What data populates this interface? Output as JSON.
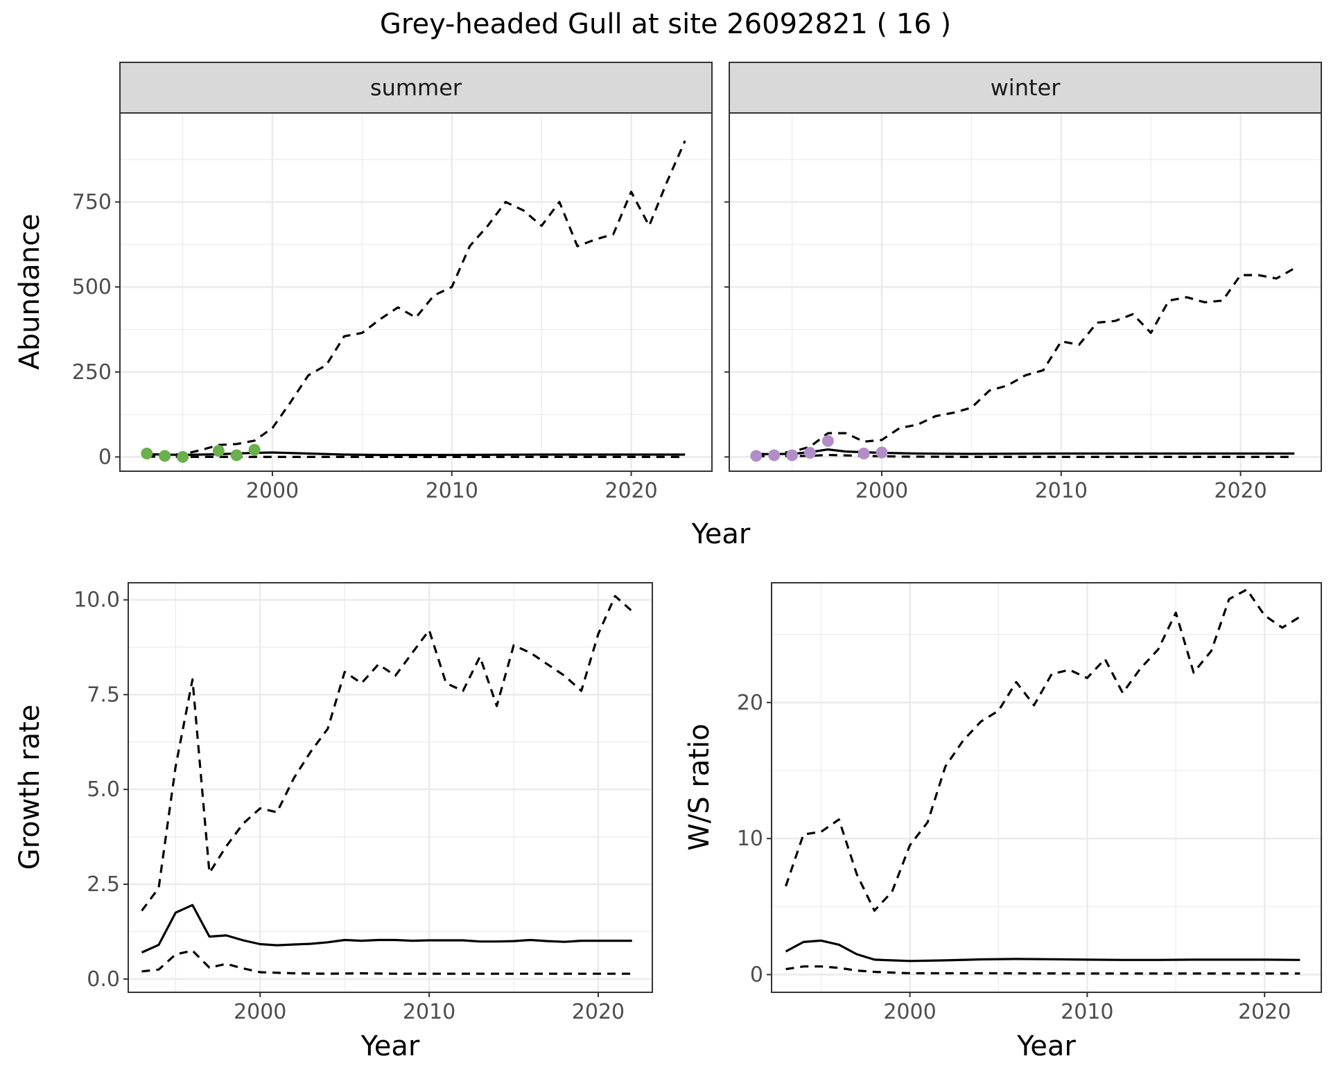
{
  "title": "Grey-headed Gull at site 26092821 ( 16 )",
  "colors": {
    "summer_points": "#6ab04c",
    "winter_points": "#b28dc8",
    "line": "#000000",
    "grid": "#ebebeb",
    "strip_bg": "#d9d9d9"
  },
  "chart_data": [
    {
      "type": "line",
      "facet": "summer",
      "xlabel": "Year",
      "ylabel": "Abundance",
      "xlim": [
        1991.5,
        2024.5
      ],
      "ylim": [
        -42,
        1012
      ],
      "xticks": [
        2000,
        2010,
        2020
      ],
      "yticks": [
        0,
        250,
        500,
        750
      ],
      "ytick_labels": [
        "0",
        "250",
        "500",
        "750"
      ],
      "grid": true,
      "series": [
        {
          "style": "dashed",
          "x": [
            1993,
            1994,
            1995,
            1996,
            1997,
            1998,
            1999,
            2000,
            2001,
            2002,
            2003,
            2004,
            2005,
            2006,
            2007,
            2008,
            2009,
            2010,
            2011,
            2012,
            2013,
            2014,
            2015,
            2016,
            2017,
            2018,
            2019,
            2020,
            2021,
            2022,
            2023
          ],
          "y": [
            5,
            6,
            8,
            20,
            35,
            38,
            48,
            85,
            160,
            240,
            270,
            355,
            365,
            405,
            440,
            410,
            475,
            500,
            620,
            680,
            750,
            725,
            680,
            750,
            620,
            640,
            655,
            780,
            680,
            810,
            930
          ]
        },
        {
          "style": "solid",
          "x": [
            1993,
            1995,
            1997,
            1999,
            2000,
            2002,
            2004,
            2006,
            2010,
            2015,
            2020,
            2023
          ],
          "y": [
            8,
            6,
            8,
            12,
            13,
            10,
            7,
            6,
            6,
            7,
            7,
            7
          ]
        },
        {
          "style": "dashed",
          "x": [
            1993,
            1996,
            1999,
            2005,
            2010,
            2015,
            2020,
            2023
          ],
          "y": [
            1,
            0,
            0,
            0,
            0,
            0,
            0,
            0
          ]
        },
        {
          "style": "points",
          "x": [
            1993,
            1994,
            1995,
            1997,
            1998,
            1999
          ],
          "y": [
            10,
            3,
            0,
            18,
            5,
            21
          ]
        }
      ]
    },
    {
      "type": "line",
      "facet": "winter",
      "xlabel": "Year",
      "ylabel": "Abundance",
      "xlim": [
        1991.5,
        2024.5
      ],
      "ylim": [
        -42,
        1012
      ],
      "xticks": [
        2000,
        2010,
        2020
      ],
      "yticks": [
        0,
        250,
        500,
        750
      ],
      "grid": true,
      "series": [
        {
          "style": "dashed",
          "x": [
            1993,
            1994,
            1995,
            1996,
            1997,
            1998,
            1999,
            2000,
            2001,
            2002,
            2003,
            2004,
            2005,
            2006,
            2007,
            2008,
            2009,
            2010,
            2011,
            2012,
            2013,
            2014,
            2015,
            2016,
            2017,
            2018,
            2019,
            2020,
            2021,
            2022,
            2023
          ],
          "y": [
            8,
            10,
            15,
            30,
            70,
            70,
            45,
            50,
            85,
            95,
            120,
            130,
            145,
            195,
            210,
            240,
            255,
            340,
            330,
            395,
            400,
            420,
            365,
            460,
            470,
            455,
            460,
            535,
            535,
            525,
            555
          ]
        },
        {
          "style": "solid",
          "x": [
            1993,
            1995,
            1996,
            1997,
            1998,
            2000,
            2002,
            2005,
            2010,
            2015,
            2020,
            2023
          ],
          "y": [
            8,
            9,
            14,
            22,
            16,
            12,
            10,
            9,
            10,
            10,
            10,
            10
          ]
        },
        {
          "style": "dashed",
          "x": [
            1993,
            1996,
            1997,
            1999,
            2001,
            2005,
            2010,
            2015,
            2020,
            2023
          ],
          "y": [
            2,
            3,
            6,
            3,
            1,
            0,
            0,
            0,
            0,
            0
          ]
        },
        {
          "style": "points",
          "x": [
            1993,
            1994,
            1995,
            1996,
            1997,
            1999,
            2000
          ],
          "y": [
            3,
            5,
            5,
            12,
            47,
            10,
            13
          ]
        }
      ]
    },
    {
      "type": "line",
      "xlabel": "Year",
      "ylabel": "Growth rate",
      "xlim": [
        1992.2,
        2023.2
      ],
      "ylim": [
        -0.35,
        10.45
      ],
      "xticks": [
        2000,
        2010,
        2020
      ],
      "yticks": [
        0,
        2.5,
        5.0,
        7.5,
        10.0
      ],
      "ytick_labels": [
        "0.0",
        "2.5",
        "5.0",
        "7.5",
        "10.0"
      ],
      "grid": true,
      "series": [
        {
          "style": "dashed",
          "x": [
            1993,
            1994,
            1995,
            1996,
            1997,
            1998,
            1999,
            2000,
            2001,
            2002,
            2003,
            2004,
            2005,
            2006,
            2007,
            2008,
            2009,
            2010,
            2011,
            2012,
            2013,
            2014,
            2015,
            2016,
            2017,
            2018,
            2019,
            2020,
            2021,
            2022
          ],
          "y": [
            1.8,
            2.4,
            5.6,
            7.9,
            2.8,
            3.5,
            4.1,
            4.5,
            4.4,
            5.3,
            6.0,
            6.6,
            8.1,
            7.8,
            8.3,
            8.0,
            8.6,
            9.2,
            7.8,
            7.6,
            8.5,
            7.2,
            8.8,
            8.6,
            8.3,
            8.0,
            7.6,
            9.1,
            10.1,
            9.7
          ]
        },
        {
          "style": "solid",
          "x": [
            1993,
            1994,
            1995,
            1996,
            1997,
            1998,
            1999,
            2000,
            2001,
            2002,
            2003,
            2004,
            2005,
            2006,
            2007,
            2008,
            2009,
            2010,
            2011,
            2012,
            2013,
            2014,
            2015,
            2016,
            2017,
            2018,
            2019,
            2020,
            2021,
            2022
          ],
          "y": [
            0.7,
            0.9,
            1.75,
            1.95,
            1.12,
            1.15,
            1.02,
            0.92,
            0.89,
            0.91,
            0.93,
            0.97,
            1.03,
            1.01,
            1.03,
            1.03,
            1.01,
            1.02,
            1.02,
            1.02,
            0.99,
            0.99,
            1.0,
            1.03,
            1.0,
            0.98,
            1.01,
            1.01,
            1.01,
            1.01
          ]
        },
        {
          "style": "dashed",
          "x": [
            1993,
            1994,
            1995,
            1996,
            1997,
            1998,
            1999,
            2000,
            2002,
            2004,
            2006,
            2008,
            2010,
            2014,
            2018,
            2022
          ],
          "y": [
            0.2,
            0.25,
            0.65,
            0.75,
            0.3,
            0.4,
            0.28,
            0.18,
            0.15,
            0.14,
            0.15,
            0.14,
            0.14,
            0.14,
            0.14,
            0.14
          ]
        }
      ]
    },
    {
      "type": "line",
      "xlabel": "Year",
      "ylabel": "W/S ratio",
      "xlim": [
        1992.2,
        2023.2
      ],
      "ylim": [
        -1.3,
        28.8
      ],
      "xticks": [
        2000,
        2010,
        2020
      ],
      "yticks": [
        0,
        10,
        20
      ],
      "ytick_labels": [
        "0",
        "10",
        "20"
      ],
      "grid": true,
      "series": [
        {
          "style": "dashed",
          "x": [
            1993,
            1994,
            1995,
            1996,
            1997,
            1998,
            1999,
            2000,
            2001,
            2002,
            2003,
            2004,
            2005,
            2006,
            2007,
            2008,
            2009,
            2010,
            2011,
            2012,
            2013,
            2014,
            2015,
            2016,
            2017,
            2018,
            2019,
            2020,
            2021,
            2022
          ],
          "y": [
            6.5,
            10.3,
            10.5,
            11.4,
            7.4,
            4.7,
            6.1,
            9.5,
            11.2,
            15.3,
            17.2,
            18.6,
            19.4,
            21.5,
            19.8,
            22.1,
            22.4,
            21.8,
            23.2,
            20.7,
            22.5,
            23.9,
            26.6,
            22.2,
            23.8,
            27.6,
            28.3,
            26.4,
            25.5,
            26.3
          ]
        },
        {
          "style": "solid",
          "x": [
            1993,
            1994,
            1995,
            1996,
            1997,
            1998,
            1999,
            2000,
            2001,
            2002,
            2004,
            2006,
            2008,
            2010,
            2012,
            2014,
            2016,
            2018,
            2020,
            2022
          ],
          "y": [
            1.7,
            2.4,
            2.5,
            2.2,
            1.5,
            1.1,
            1.05,
            1.0,
            1.02,
            1.05,
            1.12,
            1.15,
            1.13,
            1.1,
            1.08,
            1.08,
            1.1,
            1.1,
            1.1,
            1.08
          ]
        },
        {
          "style": "dashed",
          "x": [
            1993,
            1994,
            1995,
            1996,
            1997,
            1998,
            1999,
            2000,
            2004,
            2010,
            2016,
            2022
          ],
          "y": [
            0.4,
            0.6,
            0.6,
            0.5,
            0.3,
            0.2,
            0.15,
            0.1,
            0.1,
            0.08,
            0.08,
            0.08
          ]
        }
      ]
    }
  ]
}
